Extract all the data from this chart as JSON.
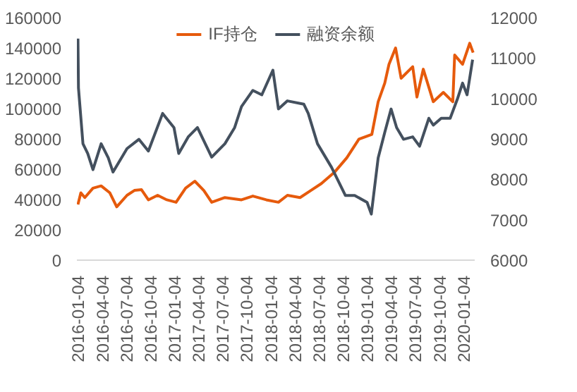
{
  "chart_data": {
    "type": "line",
    "legend": "top",
    "grid": false,
    "marker": "none",
    "line_style": "solid",
    "xlim": [
      "2015-12-31",
      "2020-02-16"
    ],
    "xticks": [
      "2016-01-04",
      "2016-04-04",
      "2016-07-04",
      "2016-10-04",
      "2017-01-04",
      "2017-04-04",
      "2017-07-04",
      "2017-10-04",
      "2018-01-04",
      "2018-04-04",
      "2018-07-04",
      "2018-10-04",
      "2019-01-04",
      "2019-04-04",
      "2019-07-04",
      "2019-10-04",
      "2020-01-04"
    ],
    "ylim": [
      0,
      160000
    ],
    "yticks": [
      0,
      20000,
      40000,
      60000,
      80000,
      100000,
      120000,
      140000,
      160000
    ],
    "y2lim": [
      6000,
      12000
    ],
    "y2ticks": [
      6000,
      7000,
      8000,
      9000,
      10000,
      11000,
      12000
    ],
    "series": [
      {
        "name": "IF持仓",
        "color": "#e65a0c",
        "x": [
          "2016-01-04",
          "2016-01-15",
          "2016-01-30",
          "2016-03-01",
          "2016-04-01",
          "2016-05-04",
          "2016-05-30",
          "2016-07-08",
          "2016-08-05",
          "2016-09-01",
          "2016-09-27",
          "2016-11-01",
          "2016-12-06",
          "2017-01-10",
          "2017-02-15",
          "2017-03-22",
          "2017-04-25",
          "2017-05-25",
          "2017-07-14",
          "2017-09-15",
          "2017-10-28",
          "2017-12-18",
          "2018-02-02",
          "2018-03-08",
          "2018-04-25",
          "2018-06-05",
          "2018-07-15",
          "2018-09-04",
          "2018-10-19",
          "2018-12-04",
          "2019-01-22",
          "2019-02-15",
          "2019-03-12",
          "2019-03-28",
          "2019-04-22",
          "2019-05-13",
          "2019-06-26",
          "2019-07-12",
          "2019-08-05",
          "2019-09-12",
          "2019-10-20",
          "2019-11-25",
          "2019-12-02",
          "2020-01-01",
          "2020-01-28",
          "2020-02-10"
        ],
        "values": [
          36700,
          44400,
          41300,
          47500,
          49000,
          44400,
          35200,
          42800,
          46000,
          46500,
          39800,
          42800,
          39800,
          38200,
          47500,
          52100,
          46000,
          38200,
          41300,
          39800,
          42300,
          39800,
          38200,
          42800,
          41300,
          46000,
          50600,
          58300,
          67500,
          79800,
          83000,
          104500,
          116800,
          129200,
          140000,
          120000,
          127600,
          107600,
          126000,
          104500,
          110700,
          104500,
          135300,
          129200,
          143100,
          136900
        ]
      },
      {
        "name": "融资余额",
        "color": "#44505e",
        "axis": "y2",
        "x": [
          "2016-01-04",
          "2016-01-06",
          "2016-01-23",
          "2016-02-10",
          "2016-03-01",
          "2016-04-01",
          "2016-04-28",
          "2016-05-16",
          "2016-07-08",
          "2016-08-22",
          "2016-09-27",
          "2016-11-20",
          "2017-01-02",
          "2017-01-20",
          "2017-02-25",
          "2017-04-01",
          "2017-05-25",
          "2017-07-14",
          "2017-08-20",
          "2017-09-15",
          "2017-10-28",
          "2017-12-01",
          "2018-01-12",
          "2018-02-02",
          "2018-03-08",
          "2018-05-09",
          "2018-05-26",
          "2018-06-30",
          "2018-08-22",
          "2018-10-14",
          "2018-11-18",
          "2019-01-04",
          "2019-01-20",
          "2019-02-15",
          "2019-03-12",
          "2019-04-05",
          "2019-04-26",
          "2019-05-22",
          "2019-06-26",
          "2019-07-22",
          "2019-08-26",
          "2019-09-12",
          "2019-10-12",
          "2019-11-15",
          "2019-12-12",
          "2020-01-01",
          "2020-01-18",
          "2020-02-08"
        ],
        "values": [
          11480,
          10260,
          8880,
          8640,
          8240,
          8880,
          8530,
          8180,
          8760,
          8990,
          8700,
          9630,
          9280,
          8640,
          9050,
          9280,
          8550,
          8880,
          9280,
          9800,
          10200,
          10090,
          10700,
          9740,
          9940,
          9860,
          9630,
          8880,
          8300,
          7600,
          7600,
          7430,
          7140,
          8530,
          9160,
          9740,
          9280,
          8990,
          9050,
          8820,
          9510,
          9340,
          9510,
          9510,
          9980,
          10380,
          10090,
          10960
        ]
      }
    ]
  }
}
